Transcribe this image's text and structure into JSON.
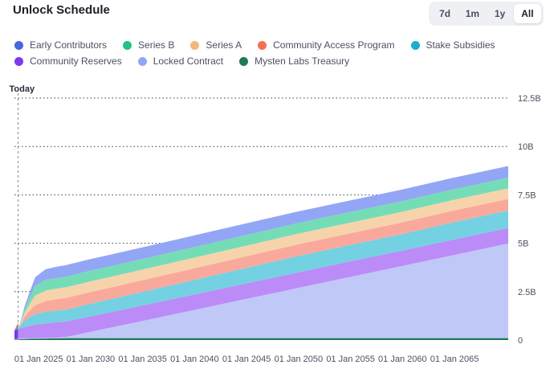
{
  "header": {
    "title": "Unlock Schedule"
  },
  "range": {
    "options": [
      "7d",
      "1m",
      "1y",
      "All"
    ],
    "selected": "All"
  },
  "chart_data": {
    "type": "area",
    "stacked": true,
    "today_label": "Today",
    "today_x": 2023.35,
    "x_ticks": [
      "01 Jan 2025",
      "01 Jan 2030",
      "01 Jan 2035",
      "01 Jan 2040",
      "01 Jan 2045",
      "01 Jan 2050",
      "01 Jan 2055",
      "01 Jan 2060",
      "01 Jan 2065"
    ],
    "x_tick_years": [
      2025,
      2030,
      2035,
      2040,
      2045,
      2050,
      2055,
      2060,
      2065
    ],
    "xlim": [
      2023.0,
      2070.5
    ],
    "y_ticks": [
      "0",
      "2.5B",
      "5B",
      "7.5B",
      "10B",
      "12.5B"
    ],
    "y_tick_values": [
      0,
      2.5,
      5,
      7.5,
      10,
      12.5
    ],
    "ylim": [
      0,
      12.5
    ],
    "x": [
      2023.0,
      2023.35,
      2023.6,
      2024.0,
      2024.5,
      2025.0,
      2026.0,
      2027.0,
      2028.0,
      2030.0,
      2035.0,
      2040.0,
      2045.0,
      2050.0,
      2055.0,
      2060.0,
      2065.0,
      2070.5
    ],
    "series": [
      {
        "name": "Mysten Labs Treasury",
        "color": "#1e7a55",
        "values": [
          0.02,
          0.03,
          0.04,
          0.05,
          0.06,
          0.07,
          0.08,
          0.09,
          0.1,
          0.1,
          0.1,
          0.1,
          0.1,
          0.1,
          0.1,
          0.1,
          0.1,
          0.1
        ]
      },
      {
        "name": "Locked Contract",
        "color": "#c0c8f8",
        "values": [
          0.03,
          0.03,
          0.03,
          0.03,
          0.03,
          0.03,
          0.03,
          0.03,
          0.06,
          0.29,
          0.85,
          1.42,
          1.99,
          2.56,
          3.13,
          3.69,
          4.26,
          4.89
        ]
      },
      {
        "name": "Community Reserves",
        "color": "#bb8cf7",
        "values": [
          0.45,
          0.5,
          0.55,
          0.6,
          0.65,
          0.7,
          0.75,
          0.8,
          0.8,
          0.8,
          0.8,
          0.8,
          0.8,
          0.8,
          0.8,
          0.8,
          0.8,
          0.8
        ]
      },
      {
        "name": "Stake Subsidies",
        "color": "#74d1e2",
        "values": [
          0.0,
          0.05,
          0.15,
          0.35,
          0.45,
          0.55,
          0.6,
          0.6,
          0.62,
          0.65,
          0.7,
          0.75,
          0.8,
          0.85,
          0.85,
          0.85,
          0.9,
          0.9
        ]
      },
      {
        "name": "Community Access Program",
        "color": "#f9a99b",
        "values": [
          0.0,
          0.0,
          0.05,
          0.2,
          0.35,
          0.45,
          0.55,
          0.58,
          0.6,
          0.6,
          0.6,
          0.6,
          0.6,
          0.6,
          0.6,
          0.6,
          0.6,
          0.6
        ]
      },
      {
        "name": "Series A",
        "color": "#f7d3ab",
        "values": [
          0.0,
          0.0,
          0.05,
          0.2,
          0.35,
          0.5,
          0.55,
          0.55,
          0.55,
          0.55,
          0.55,
          0.55,
          0.55,
          0.55,
          0.55,
          0.55,
          0.55,
          0.55
        ]
      },
      {
        "name": "Series B",
        "color": "#74ddb6",
        "values": [
          0.0,
          0.0,
          0.05,
          0.2,
          0.35,
          0.5,
          0.55,
          0.55,
          0.55,
          0.55,
          0.55,
          0.55,
          0.55,
          0.55,
          0.55,
          0.55,
          0.55,
          0.55
        ]
      },
      {
        "name": "Early Contributors",
        "color": "#93a6f5",
        "values": [
          0.0,
          0.0,
          0.05,
          0.15,
          0.3,
          0.45,
          0.55,
          0.58,
          0.6,
          0.6,
          0.6,
          0.6,
          0.6,
          0.6,
          0.6,
          0.6,
          0.6,
          0.6
        ]
      }
    ],
    "early_overlay": {
      "x": [
        2023.0,
        2023.35
      ],
      "bands": [
        {
          "name": "Community Reserves",
          "color": "#7c3aed",
          "bottom": [
            0.05,
            0.06
          ],
          "top": [
            0.5,
            0.56
          ]
        },
        {
          "name": "Stake Subsidies",
          "color": "#19b0cc",
          "bottom": [
            0.5,
            0.56
          ],
          "top": [
            0.5,
            0.7
          ]
        },
        {
          "name": "Community Access Program",
          "color": "#f27152",
          "bottom": [
            0.5,
            0.7
          ],
          "top": [
            0.5,
            0.9
          ]
        }
      ]
    }
  },
  "legend": {
    "rows": [
      [
        {
          "name": "Early Contributors",
          "color": "#4866e0"
        },
        {
          "name": "Series B",
          "color": "#22c383"
        },
        {
          "name": "Series A",
          "color": "#f2b77e"
        },
        {
          "name": "Community Access Program",
          "color": "#f27152"
        },
        {
          "name": "Stake Subsidies",
          "color": "#19b0cc"
        }
      ],
      [
        {
          "name": "Community Reserves",
          "color": "#7c3aed"
        },
        {
          "name": "Locked Contract",
          "color": "#93a6f5"
        },
        {
          "name": "Mysten Labs Treasury",
          "color": "#1e7a55"
        }
      ]
    ]
  }
}
